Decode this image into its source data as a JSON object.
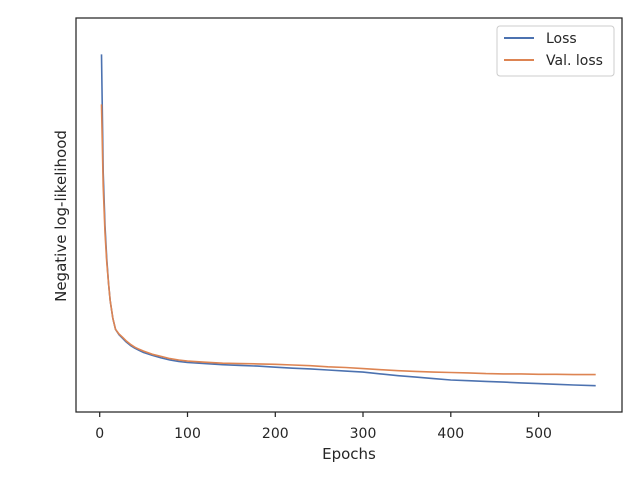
{
  "chart_data": {
    "type": "line",
    "xlabel": "Epochs",
    "ylabel": "Negative log-likelihood",
    "xlim": [
      -27,
      595
    ],
    "ylim": [
      0,
      1
    ],
    "x_ticks": [
      0,
      100,
      200,
      300,
      400,
      500
    ],
    "y_ticks_shown": false,
    "grid": false,
    "legend": {
      "placement": "top-right"
    },
    "series": [
      {
        "name": "Loss",
        "color": "#4c72b0",
        "x": [
          2,
          4,
          6,
          8,
          10,
          12,
          15,
          18,
          22,
          26,
          30,
          35,
          40,
          45,
          50,
          60,
          70,
          80,
          90,
          100,
          120,
          140,
          160,
          180,
          200,
          220,
          240,
          260,
          280,
          300,
          320,
          340,
          360,
          380,
          400,
          420,
          440,
          460,
          480,
          500,
          520,
          540,
          565
        ],
        "y": [
          0.94,
          0.61,
          0.46,
          0.37,
          0.3,
          0.25,
          0.2,
          0.17,
          0.155,
          0.145,
          0.135,
          0.125,
          0.117,
          0.111,
          0.105,
          0.097,
          0.09,
          0.084,
          0.08,
          0.077,
          0.074,
          0.071,
          0.069,
          0.067,
          0.064,
          0.061,
          0.059,
          0.056,
          0.053,
          0.05,
          0.045,
          0.04,
          0.036,
          0.032,
          0.028,
          0.026,
          0.024,
          0.022,
          0.02,
          0.018,
          0.016,
          0.014,
          0.012
        ]
      },
      {
        "name": "Val. loss",
        "color": "#dd8452",
        "x": [
          2,
          4,
          6,
          8,
          10,
          12,
          15,
          18,
          22,
          26,
          30,
          35,
          40,
          45,
          50,
          60,
          70,
          80,
          90,
          100,
          120,
          140,
          160,
          180,
          200,
          220,
          240,
          260,
          280,
          300,
          320,
          340,
          360,
          380,
          400,
          420,
          440,
          460,
          480,
          500,
          520,
          540,
          565
        ],
        "y": [
          0.8,
          0.57,
          0.44,
          0.36,
          0.3,
          0.25,
          0.2,
          0.17,
          0.157,
          0.148,
          0.138,
          0.128,
          0.12,
          0.114,
          0.109,
          0.1,
          0.094,
          0.088,
          0.084,
          0.081,
          0.078,
          0.075,
          0.074,
          0.073,
          0.072,
          0.07,
          0.068,
          0.065,
          0.063,
          0.06,
          0.057,
          0.054,
          0.052,
          0.05,
          0.049,
          0.048,
          0.046,
          0.045,
          0.045,
          0.044,
          0.044,
          0.043,
          0.043
        ]
      }
    ]
  }
}
